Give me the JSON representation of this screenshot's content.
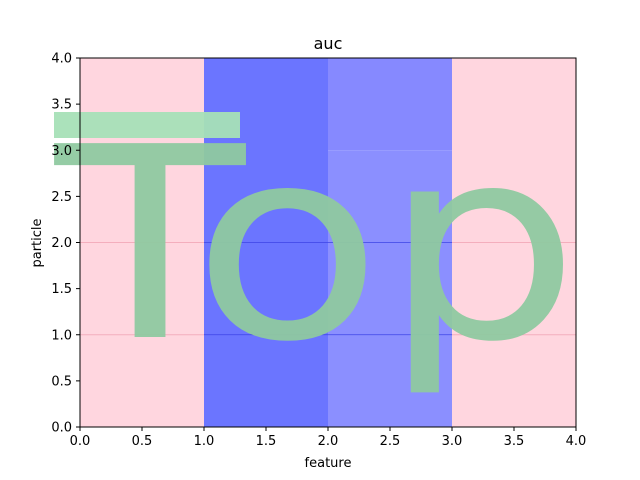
{
  "chart_data": {
    "type": "heatmap",
    "title": "auc",
    "xlabel": "feature",
    "ylabel": "particle",
    "xlim": [
      0,
      4
    ],
    "ylim": [
      0,
      4
    ],
    "xticks": [
      "0.0",
      "0.5",
      "1.0",
      "1.5",
      "2.0",
      "2.5",
      "3.0",
      "3.5",
      "4.0"
    ],
    "yticks": [
      "0.0",
      "0.5",
      "1.0",
      "1.5",
      "2.0",
      "2.5",
      "3.0",
      "3.5",
      "4.0"
    ],
    "cells": [
      {
        "x0": 0,
        "x1": 1,
        "y0": 0,
        "y1": 4,
        "color": "#ffd6df"
      },
      {
        "x0": 1,
        "x1": 2,
        "y0": 0,
        "y1": 4,
        "color": "#6b75ff"
      },
      {
        "x0": 2,
        "x1": 3,
        "y0": 0,
        "y1": 3,
        "color": "#8b8fff"
      },
      {
        "x0": 2,
        "x1": 3,
        "y0": 3,
        "y1": 4,
        "color": "#8689ff"
      },
      {
        "x0": 3,
        "x1": 4,
        "y0": 0,
        "y1": 4,
        "color": "#ffd6df"
      }
    ],
    "reference_lines": [
      {
        "y": 1.0,
        "color_pink": "#f4aebd",
        "color_blue": "#3c45e6"
      },
      {
        "y": 2.0,
        "color_pink": "#f4aebd",
        "color_blue": "#3c45e6"
      }
    ],
    "overlay_text": {
      "text": "Top",
      "color": "#8fc9a0",
      "t_bar_color": "#a6e0b7"
    }
  }
}
